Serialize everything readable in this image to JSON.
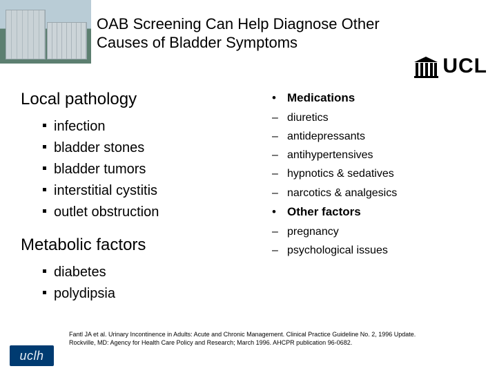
{
  "title": "OAB Screening Can Help Diagnose Other Causes of Bladder Symptoms",
  "ucl_text": "UCL",
  "uclh_text": "uclh",
  "left": {
    "section1": {
      "heading": "Local pathology",
      "items": [
        "infection",
        "bladder stones",
        "bladder tumors",
        "interstitial cystitis",
        "outlet obstruction"
      ]
    },
    "section2": {
      "heading": "Metabolic factors",
      "items": [
        "diabetes",
        "polydipsia"
      ]
    }
  },
  "right": {
    "group1": {
      "heading": "Medications",
      "items": [
        "diuretics",
        "antidepressants",
        "antihypertensives",
        "hypnotics & sedatives",
        "narcotics & analgesics"
      ]
    },
    "group2": {
      "heading": "Other factors",
      "items": [
        "pregnancy",
        "psychological issues"
      ]
    }
  },
  "citation_line1": "Fantl JA et al. Urinary Incontinence in Adults: Acute and Chronic Management. Clinical Practice Guideline No. 2, 1996 Update.",
  "citation_line2": "Rockville, MD: Agency for Health Care Policy and Research; March 1996. AHCPR publication 96-0682.",
  "colors": {
    "bg": "#ffffff",
    "text": "#000000",
    "uclh_bg": "#003b71"
  },
  "fonts": {
    "title_size": 22,
    "section_size": 24,
    "left_item_size": 20,
    "right_head_size": 17,
    "right_item_size": 16,
    "citation_size": 9
  }
}
